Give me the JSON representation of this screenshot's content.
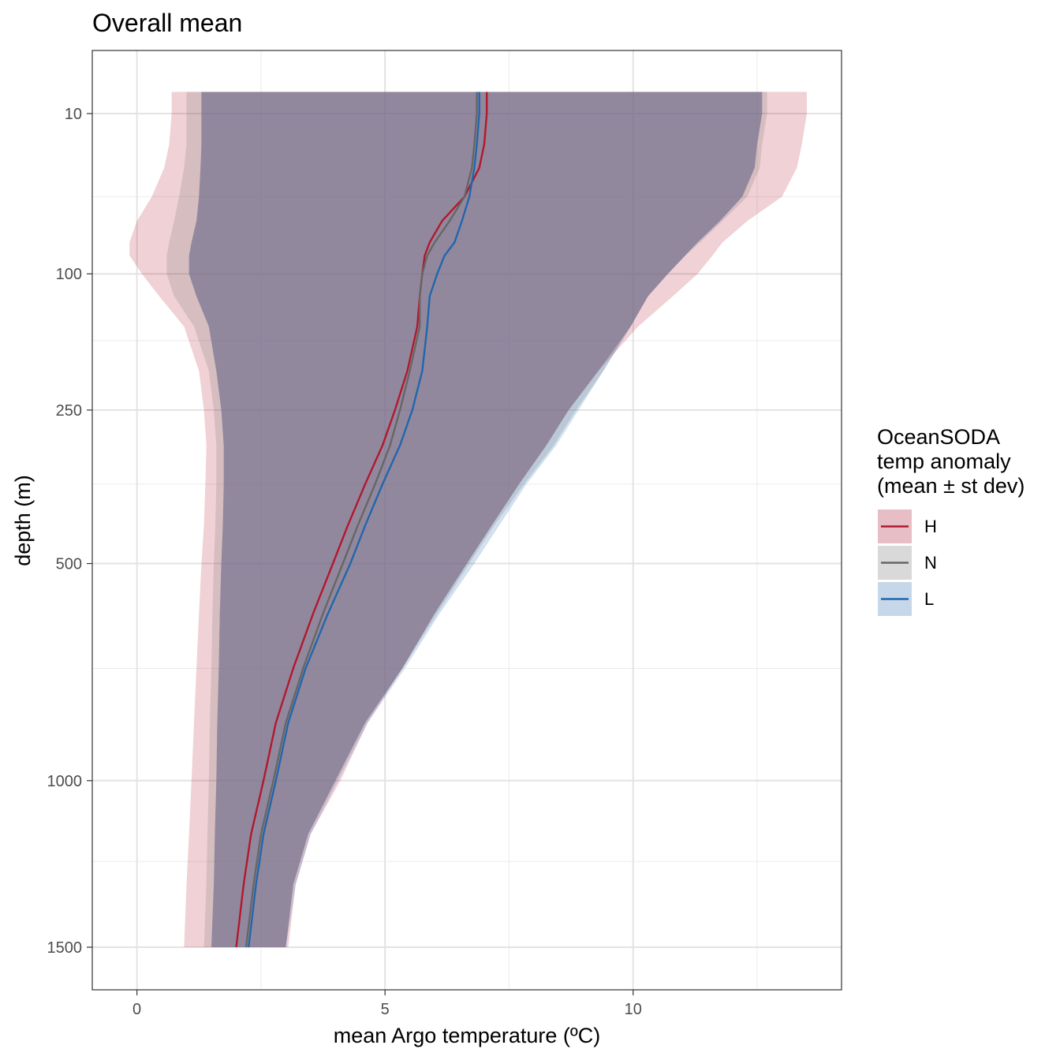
{
  "chart_data": {
    "type": "line",
    "title": "Overall mean",
    "xlabel": "mean Argo temperature (ºC)",
    "ylabel": "depth (m)",
    "xlim": [
      -0.9,
      14.2
    ],
    "ylim": [
      1500,
      0
    ],
    "y_scale": "sqrt-reversed",
    "x_ticks": [
      0,
      5,
      10
    ],
    "x_tick_labels": [
      "0",
      "5",
      "10"
    ],
    "y_ticks": [
      10,
      100,
      250,
      500,
      1000,
      1500
    ],
    "y_tick_labels": [
      "10",
      "100",
      "250",
      "500",
      "1000",
      "1500"
    ],
    "x_minor_gridlines": [
      2.5,
      7.5,
      12.5
    ],
    "y_minor_gridlines": [
      45,
      165,
      360,
      720,
      1230
    ],
    "grid": true,
    "legend": {
      "title_lines": [
        "OceanSODA",
        "temp anomaly",
        "(mean ± st dev)"
      ],
      "position": "right"
    },
    "depth": [
      5,
      10,
      20,
      30,
      45,
      60,
      75,
      85,
      100,
      120,
      150,
      200,
      250,
      300,
      360,
      430,
      500,
      600,
      720,
      850,
      1000,
      1150,
      1300,
      1500
    ],
    "series": [
      {
        "name": "H",
        "color": "#b2182b",
        "ribbon_color": "#e8bec6",
        "mean": [
          7.05,
          7.05,
          7.0,
          6.9,
          6.6,
          6.15,
          5.9,
          5.8,
          5.75,
          5.7,
          5.65,
          5.45,
          5.2,
          4.95,
          4.6,
          4.25,
          3.95,
          3.55,
          3.15,
          2.8,
          2.55,
          2.3,
          2.15,
          2.0
        ],
        "lower": [
          0.7,
          0.7,
          0.65,
          0.55,
          0.3,
          0.0,
          -0.15,
          -0.15,
          0.1,
          0.45,
          0.95,
          1.25,
          1.35,
          1.4,
          1.38,
          1.35,
          1.3,
          1.25,
          1.2,
          1.15,
          1.1,
          1.05,
          1.0,
          0.95
        ],
        "upper": [
          13.5,
          13.5,
          13.4,
          13.3,
          13.0,
          12.3,
          11.8,
          11.6,
          11.3,
          10.8,
          10.1,
          9.3,
          8.7,
          8.25,
          7.7,
          7.15,
          6.65,
          6.0,
          5.35,
          4.65,
          4.1,
          3.5,
          3.2,
          3.05
        ]
      },
      {
        "name": "N",
        "color": "#666666",
        "ribbon_color": "#d9d9d9",
        "mean": [
          6.85,
          6.85,
          6.8,
          6.75,
          6.6,
          6.3,
          6.0,
          5.85,
          5.75,
          5.7,
          5.7,
          5.5,
          5.3,
          5.1,
          4.8,
          4.45,
          4.15,
          3.75,
          3.35,
          3.0,
          2.75,
          2.5,
          2.35,
          2.2
        ],
        "lower": [
          1.0,
          1.0,
          1.0,
          0.95,
          0.85,
          0.75,
          0.65,
          0.6,
          0.6,
          0.75,
          1.15,
          1.45,
          1.55,
          1.6,
          1.6,
          1.58,
          1.55,
          1.52,
          1.5,
          1.47,
          1.45,
          1.42,
          1.4,
          1.35
        ],
        "upper": [
          12.7,
          12.7,
          12.6,
          12.55,
          12.3,
          11.8,
          11.35,
          11.05,
          10.7,
          10.3,
          9.95,
          9.4,
          8.85,
          8.4,
          7.8,
          7.2,
          6.7,
          6.05,
          5.35,
          4.6,
          4.0,
          3.45,
          3.15,
          3.0
        ]
      },
      {
        "name": "L",
        "color": "#2166ac",
        "ribbon_color": "#c6d7ea",
        "mean": [
          6.9,
          6.9,
          6.85,
          6.8,
          6.7,
          6.55,
          6.4,
          6.2,
          6.05,
          5.9,
          5.85,
          5.75,
          5.55,
          5.3,
          4.95,
          4.6,
          4.3,
          3.85,
          3.4,
          3.05,
          2.8,
          2.55,
          2.4,
          2.25
        ],
        "lower": [
          1.3,
          1.3,
          1.3,
          1.28,
          1.25,
          1.2,
          1.1,
          1.05,
          1.05,
          1.2,
          1.45,
          1.6,
          1.7,
          1.75,
          1.75,
          1.73,
          1.7,
          1.67,
          1.65,
          1.62,
          1.6,
          1.57,
          1.55,
          1.5
        ],
        "upper": [
          12.6,
          12.6,
          12.5,
          12.45,
          12.2,
          11.75,
          11.3,
          11.05,
          10.7,
          10.3,
          9.95,
          9.4,
          8.9,
          8.45,
          7.85,
          7.3,
          6.8,
          6.1,
          5.4,
          4.65,
          4.05,
          3.5,
          3.2,
          3.0
        ]
      }
    ]
  }
}
